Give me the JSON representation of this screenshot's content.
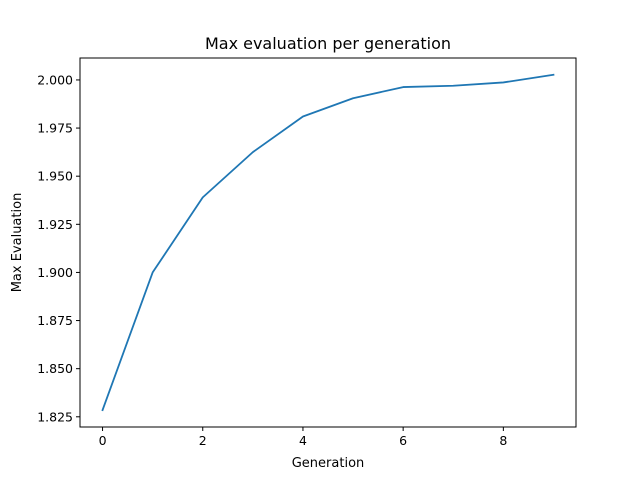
{
  "chart_data": {
    "type": "line",
    "title": "Max evaluation per generation",
    "xlabel": "Generation",
    "ylabel": "Max Evaluation",
    "x": [
      0,
      1,
      2,
      3,
      4,
      5,
      6,
      7,
      8,
      9
    ],
    "series": [
      {
        "values": [
          1.8285,
          1.9,
          1.939,
          1.9625,
          1.981,
          1.9905,
          1.9963,
          1.997,
          1.9987,
          2.0027
        ],
        "color": "#1f77b4"
      }
    ],
    "xlim": [
      -0.45,
      9.45
    ],
    "ylim": [
      1.8197,
      2.0114
    ],
    "xticks": [
      0,
      2,
      4,
      6,
      8
    ],
    "xtick_labels": [
      "0",
      "2",
      "4",
      "6",
      "8"
    ],
    "yticks": [
      1.825,
      1.85,
      1.875,
      1.9,
      1.925,
      1.95,
      1.975,
      2.0
    ],
    "ytick_labels": [
      "1.825",
      "1.850",
      "1.875",
      "1.900",
      "1.925",
      "1.950",
      "1.975",
      "2.000"
    ],
    "grid": false,
    "legend": "none"
  }
}
